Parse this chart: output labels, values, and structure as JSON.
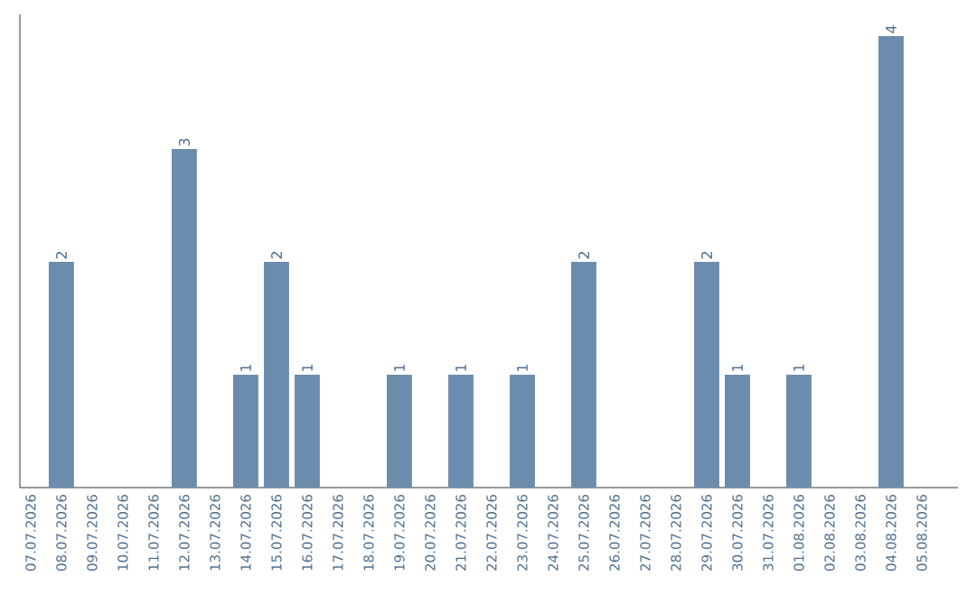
{
  "chart_data": {
    "type": "bar",
    "categories": [
      "07.07.2026",
      "08.07.2026",
      "09.07.2026",
      "10.07.2026",
      "11.07.2026",
      "12.07.2026",
      "13.07.2026",
      "14.07.2026",
      "15.07.2026",
      "16.07.2026",
      "17.07.2026",
      "18.07.2026",
      "19.07.2026",
      "20.07.2026",
      "21.07.2026",
      "22.07.2026",
      "23.07.2026",
      "24.07.2026",
      "25.07.2026",
      "26.07.2026",
      "27.07.2026",
      "28.07.2026",
      "29.07.2026",
      "30.07.2026",
      "31.07.2026",
      "01.08.2026",
      "02.08.2026",
      "03.08.2026",
      "04.08.2026",
      "05.08.2026"
    ],
    "values": [
      0,
      2,
      0,
      0,
      0,
      3,
      0,
      1,
      2,
      1,
      0,
      0,
      1,
      0,
      1,
      0,
      1,
      0,
      2,
      0,
      0,
      0,
      2,
      1,
      0,
      1,
      0,
      0,
      4,
      0
    ],
    "value_labels": [
      null,
      "2",
      null,
      null,
      null,
      "3",
      null,
      "1",
      "2",
      "1",
      null,
      null,
      "1",
      null,
      "1",
      null,
      "1",
      null,
      "2",
      null,
      null,
      null,
      "2",
      "1",
      null,
      "1",
      null,
      null,
      "4",
      null
    ],
    "color": "#6b8cad",
    "tick_labels": "x"
  }
}
